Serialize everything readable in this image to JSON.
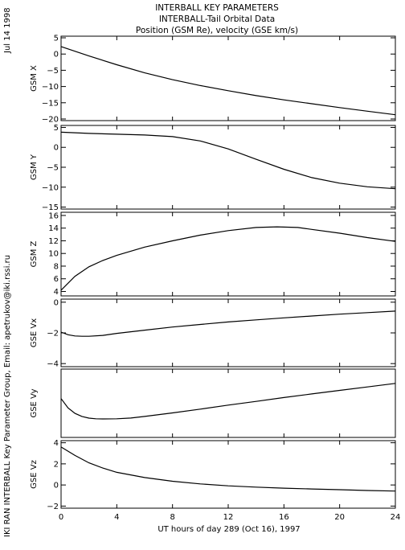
{
  "header": {
    "date": "Jul 14 1998",
    "title_lines": [
      "INTERBALL KEY PARAMETERS",
      "INTERBALL-Tail Orbital Data",
      "Position (GSM Re), velocity (GSE km/s)"
    ]
  },
  "credit": "IKI RAN INTERBALL Key Parameter Group, Email: apetrukov@iki.rssi.ru",
  "chart_data": {
    "type": "line",
    "x_axis": {
      "label": "UT hours of day 289 (Oct 16), 1997",
      "range": [
        0,
        24
      ],
      "ticks": [
        0,
        4,
        8,
        12,
        16,
        20,
        24
      ]
    },
    "panels": [
      {
        "ylabel": "GSM X",
        "yrange": [
          -20.5,
          5.5
        ],
        "yticks": [
          5,
          0,
          -5,
          -10,
          -15,
          -20
        ],
        "x": [
          0,
          2,
          4,
          6,
          8,
          10,
          12,
          14,
          16,
          18,
          20,
          22,
          24
        ],
        "y": [
          2.3,
          -0.6,
          -3.3,
          -5.8,
          -7.9,
          -9.7,
          -11.3,
          -12.8,
          -14.1,
          -15.3,
          -16.5,
          -17.6,
          -18.7
        ]
      },
      {
        "ylabel": "GSM Y",
        "yrange": [
          -15.5,
          5.5
        ],
        "yticks": [
          5,
          0,
          -5,
          -10,
          -15
        ],
        "x": [
          0,
          2,
          4,
          6,
          8,
          10,
          12,
          14,
          16,
          18,
          20,
          22,
          24
        ],
        "y": [
          3.8,
          3.5,
          3.3,
          3.1,
          2.7,
          1.6,
          -0.4,
          -3.0,
          -5.5,
          -7.6,
          -9.0,
          -9.9,
          -10.4
        ]
      },
      {
        "ylabel": "GSM Z",
        "yrange": [
          3.3,
          16.5
        ],
        "yticks": [
          4,
          6,
          8,
          10,
          12,
          14,
          16
        ],
        "x": [
          0,
          1,
          2,
          3,
          4,
          6,
          8,
          10,
          12,
          14,
          15.5,
          17,
          18,
          20,
          22,
          24
        ],
        "y": [
          4.2,
          6.4,
          7.9,
          8.9,
          9.7,
          11.0,
          12.0,
          12.9,
          13.6,
          14.1,
          14.2,
          14.1,
          13.8,
          13.2,
          12.5,
          11.9
        ]
      },
      {
        "ylabel": "GSE Vx",
        "yrange": [
          -4.2,
          0.2
        ],
        "yticks": [
          0,
          -2,
          -4
        ],
        "x": [
          0,
          0.5,
          1,
          1.5,
          2,
          3,
          4,
          6,
          8,
          10,
          12,
          14,
          16,
          18,
          20,
          22,
          24
        ],
        "y": [
          -1.95,
          -2.12,
          -2.2,
          -2.22,
          -2.22,
          -2.16,
          -2.03,
          -1.82,
          -1.62,
          -1.45,
          -1.29,
          -1.15,
          -1.02,
          -0.9,
          -0.78,
          -0.68,
          -0.58
        ],
        "yrange_note": ""
      },
      {
        "ylabel": "GSE Vy",
        "yrange": [
          -4.2,
          0.2
        ],
        "yticks": [],
        "x": [
          0,
          0.5,
          1,
          1.5,
          2,
          2.5,
          3,
          4,
          5,
          6,
          8,
          10,
          12,
          14,
          16,
          18,
          20,
          22,
          24
        ],
        "y": [
          -1.7,
          -2.3,
          -2.65,
          -2.85,
          -2.96,
          -3.0,
          -3.01,
          -3.0,
          -2.95,
          -2.85,
          -2.62,
          -2.38,
          -2.12,
          -1.88,
          -1.63,
          -1.4,
          -1.17,
          -0.95,
          -0.72
        ]
      },
      {
        "ylabel": "GSE Vz",
        "yrange": [
          -2.2,
          4.2
        ],
        "yticks": [
          4,
          2,
          0,
          -2
        ],
        "x": [
          0,
          1,
          2,
          3,
          4,
          6,
          8,
          10,
          12,
          14,
          16,
          18,
          20,
          22,
          24
        ],
        "y": [
          3.6,
          2.8,
          2.1,
          1.6,
          1.2,
          0.7,
          0.35,
          0.1,
          -0.08,
          -0.2,
          -0.3,
          -0.38,
          -0.45,
          -0.52,
          -0.58
        ]
      }
    ]
  }
}
